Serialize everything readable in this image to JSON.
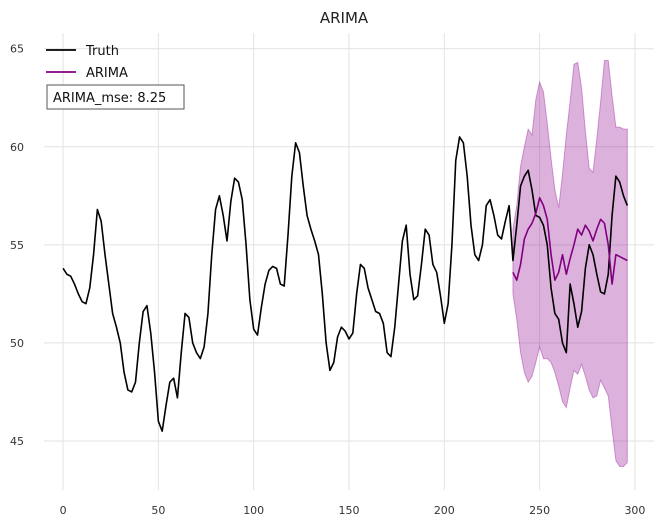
{
  "chart_data": {
    "type": "line",
    "title": "ARIMA",
    "xlabel": "",
    "ylabel": "",
    "xlim": [
      -10,
      310
    ],
    "ylim": [
      42.5,
      65.8
    ],
    "grid": true,
    "legend_position": "top-left",
    "x_ticks": [
      0,
      50,
      100,
      150,
      200,
      250,
      300
    ],
    "y_ticks": [
      45,
      50,
      55,
      60,
      65
    ],
    "x_tick_labels": [
      "0",
      "50",
      "100",
      "150",
      "200",
      "250",
      "300"
    ],
    "y_tick_labels": [
      "45",
      "50",
      "55",
      "60",
      "65"
    ],
    "legend": [
      {
        "name": "Truth",
        "color": "#000000"
      },
      {
        "name": "ARIMA",
        "color": "#800080"
      }
    ],
    "annotation": "ARIMA_mse: 8.25",
    "series": [
      {
        "name": "Truth",
        "color": "#000000",
        "points": [
          [
            0,
            53.8
          ],
          [
            2,
            53.5
          ],
          [
            4,
            53.4
          ],
          [
            6,
            53
          ],
          [
            8,
            52.5
          ],
          [
            10,
            52.1
          ],
          [
            12,
            52
          ],
          [
            14,
            52.8
          ],
          [
            16,
            54.5
          ],
          [
            18,
            56.8
          ],
          [
            20,
            56.2
          ],
          [
            22,
            54.5
          ],
          [
            24,
            53
          ],
          [
            26,
            51.5
          ],
          [
            28,
            50.8
          ],
          [
            30,
            50
          ],
          [
            32,
            48.5
          ],
          [
            34,
            47.6
          ],
          [
            36,
            47.5
          ],
          [
            38,
            48
          ],
          [
            40,
            50
          ],
          [
            42,
            51.6
          ],
          [
            44,
            51.9
          ],
          [
            46,
            50.5
          ],
          [
            48,
            48.5
          ],
          [
            50,
            46
          ],
          [
            52,
            45.5
          ],
          [
            54,
            46.8
          ],
          [
            56,
            48
          ],
          [
            58,
            48.2
          ],
          [
            60,
            47.2
          ],
          [
            62,
            49.5
          ],
          [
            64,
            51.5
          ],
          [
            66,
            51.3
          ],
          [
            68,
            50
          ],
          [
            70,
            49.5
          ],
          [
            72,
            49.2
          ],
          [
            74,
            49.8
          ],
          [
            76,
            51.5
          ],
          [
            78,
            54.5
          ],
          [
            80,
            56.8
          ],
          [
            82,
            57.5
          ],
          [
            84,
            56.5
          ],
          [
            86,
            55.2
          ],
          [
            88,
            57.2
          ],
          [
            90,
            58.4
          ],
          [
            92,
            58.2
          ],
          [
            94,
            57.3
          ],
          [
            96,
            55
          ],
          [
            98,
            52.2
          ],
          [
            100,
            50.7
          ],
          [
            102,
            50.4
          ],
          [
            104,
            51.8
          ],
          [
            106,
            53
          ],
          [
            108,
            53.7
          ],
          [
            110,
            53.9
          ],
          [
            112,
            53.8
          ],
          [
            114,
            53
          ],
          [
            116,
            52.9
          ],
          [
            118,
            55.5
          ],
          [
            120,
            58.5
          ],
          [
            122,
            60.2
          ],
          [
            124,
            59.7
          ],
          [
            126,
            58
          ],
          [
            128,
            56.5
          ],
          [
            130,
            55.8
          ],
          [
            132,
            55.2
          ],
          [
            134,
            54.5
          ],
          [
            136,
            52.5
          ],
          [
            138,
            50
          ],
          [
            140,
            48.6
          ],
          [
            142,
            49
          ],
          [
            144,
            50.3
          ],
          [
            146,
            50.8
          ],
          [
            148,
            50.6
          ],
          [
            150,
            50.2
          ],
          [
            152,
            50.5
          ],
          [
            154,
            52.5
          ],
          [
            156,
            54
          ],
          [
            158,
            53.8
          ],
          [
            160,
            52.8
          ],
          [
            162,
            52.2
          ],
          [
            164,
            51.6
          ],
          [
            166,
            51.5
          ],
          [
            168,
            51
          ],
          [
            170,
            49.5
          ],
          [
            172,
            49.3
          ],
          [
            174,
            50.8
          ],
          [
            176,
            53
          ],
          [
            178,
            55.2
          ],
          [
            180,
            56
          ],
          [
            182,
            53.5
          ],
          [
            184,
            52.2
          ],
          [
            186,
            52.4
          ],
          [
            188,
            54
          ],
          [
            190,
            55.8
          ],
          [
            192,
            55.5
          ],
          [
            194,
            54
          ],
          [
            196,
            53.6
          ],
          [
            198,
            52.4
          ],
          [
            200,
            51
          ],
          [
            202,
            52
          ],
          [
            204,
            55
          ],
          [
            206,
            59.3
          ],
          [
            208,
            60.5
          ],
          [
            210,
            60.2
          ],
          [
            212,
            58.5
          ],
          [
            214,
            56
          ],
          [
            216,
            54.5
          ],
          [
            218,
            54.2
          ],
          [
            220,
            55
          ],
          [
            222,
            57
          ],
          [
            224,
            57.3
          ],
          [
            226,
            56.5
          ],
          [
            228,
            55.5
          ],
          [
            230,
            55.3
          ],
          [
            232,
            56.2
          ],
          [
            234,
            57
          ],
          [
            236,
            54.2
          ],
          [
            238,
            56
          ],
          [
            240,
            58
          ],
          [
            242,
            58.5
          ],
          [
            244,
            58.8
          ],
          [
            246,
            57.8
          ],
          [
            248,
            56.5
          ],
          [
            250,
            56.4
          ],
          [
            252,
            56
          ],
          [
            254,
            55
          ],
          [
            256,
            52.8
          ],
          [
            258,
            51.5
          ],
          [
            260,
            51.2
          ],
          [
            262,
            50
          ],
          [
            264,
            49.5
          ],
          [
            266,
            53
          ],
          [
            268,
            52
          ],
          [
            270,
            50.8
          ],
          [
            272,
            51.6
          ],
          [
            274,
            53.8
          ],
          [
            276,
            55
          ],
          [
            278,
            54.5
          ],
          [
            280,
            53.5
          ],
          [
            282,
            52.6
          ],
          [
            284,
            52.5
          ],
          [
            286,
            53.5
          ],
          [
            288,
            56.5
          ],
          [
            290,
            58.5
          ],
          [
            292,
            58.2
          ],
          [
            294,
            57.5
          ],
          [
            296,
            57
          ]
        ]
      },
      {
        "name": "ARIMA",
        "color": "#800080",
        "points": [
          [
            236,
            53.6
          ],
          [
            238,
            53.2
          ],
          [
            240,
            54
          ],
          [
            242,
            55.3
          ],
          [
            244,
            55.8
          ],
          [
            246,
            56.1
          ],
          [
            248,
            56.6
          ],
          [
            250,
            57.4
          ],
          [
            252,
            57
          ],
          [
            254,
            56.3
          ],
          [
            256,
            54.5
          ],
          [
            258,
            53.2
          ],
          [
            260,
            53.6
          ],
          [
            262,
            54.5
          ],
          [
            264,
            53.5
          ],
          [
            266,
            54.3
          ],
          [
            268,
            55
          ],
          [
            270,
            55.8
          ],
          [
            272,
            55.5
          ],
          [
            274,
            56
          ],
          [
            276,
            55.7
          ],
          [
            278,
            55.2
          ],
          [
            280,
            55.8
          ],
          [
            282,
            56.3
          ],
          [
            284,
            56.1
          ],
          [
            286,
            55
          ],
          [
            288,
            53
          ],
          [
            290,
            54.5
          ],
          [
            292,
            54.4
          ],
          [
            294,
            54.3
          ],
          [
            296,
            54.2
          ]
        ],
        "band_upper": [
          [
            236,
            55.8
          ],
          [
            238,
            57
          ],
          [
            240,
            59
          ],
          [
            242,
            60
          ],
          [
            244,
            60.9
          ],
          [
            246,
            60.6
          ],
          [
            248,
            62.4
          ],
          [
            250,
            63.3
          ],
          [
            252,
            62.8
          ],
          [
            254,
            61.2
          ],
          [
            256,
            59.4
          ],
          [
            258,
            57.8
          ],
          [
            260,
            56.9
          ],
          [
            262,
            58.6
          ],
          [
            264,
            60.6
          ],
          [
            266,
            62.3
          ],
          [
            268,
            64.2
          ],
          [
            270,
            64.3
          ],
          [
            272,
            63
          ],
          [
            274,
            60.8
          ],
          [
            276,
            58.9
          ],
          [
            278,
            58.7
          ],
          [
            280,
            60.4
          ],
          [
            282,
            62.3
          ],
          [
            284,
            64.4
          ],
          [
            286,
            64.4
          ],
          [
            288,
            62.6
          ],
          [
            290,
            61
          ],
          [
            292,
            61
          ],
          [
            294,
            60.9
          ],
          [
            296,
            60.9
          ]
        ],
        "band_lower": [
          [
            236,
            52.5
          ],
          [
            238,
            51.2
          ],
          [
            240,
            49.5
          ],
          [
            242,
            48.5
          ],
          [
            244,
            48
          ],
          [
            246,
            48.3
          ],
          [
            248,
            49
          ],
          [
            250,
            49.8
          ],
          [
            252,
            49.2
          ],
          [
            254,
            49.2
          ],
          [
            256,
            49
          ],
          [
            258,
            48.5
          ],
          [
            260,
            47.8
          ],
          [
            262,
            47
          ],
          [
            264,
            46.7
          ],
          [
            266,
            47.7
          ],
          [
            268,
            48.6
          ],
          [
            270,
            48.4
          ],
          [
            272,
            48.9
          ],
          [
            274,
            48.3
          ],
          [
            276,
            47.6
          ],
          [
            278,
            47.2
          ],
          [
            280,
            47.3
          ],
          [
            282,
            48.1
          ],
          [
            284,
            47.7
          ],
          [
            286,
            47.3
          ],
          [
            288,
            45.6
          ],
          [
            290,
            44
          ],
          [
            292,
            43.7
          ],
          [
            294,
            43.7
          ],
          [
            296,
            43.9
          ]
        ],
        "band_color": "#8b008b"
      }
    ]
  }
}
